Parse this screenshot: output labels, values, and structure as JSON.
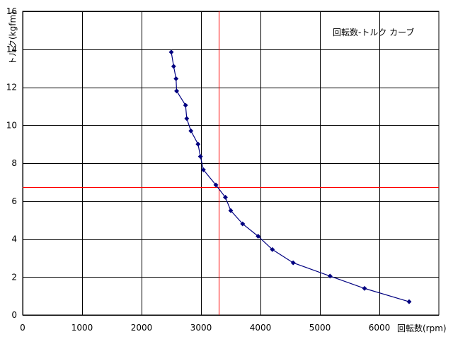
{
  "chart_data": {
    "type": "scatter",
    "title": "回転数-トルク カーブ",
    "xlabel": "回転数(rpm)",
    "ylabel": "トルク(kgfm)",
    "xlim": [
      0,
      7000
    ],
    "ylim": [
      0,
      16
    ],
    "xticks": [
      0,
      1000,
      2000,
      3000,
      4000,
      5000,
      6000
    ],
    "yticks": [
      0,
      2,
      4,
      6,
      8,
      10,
      12,
      14,
      16
    ],
    "xtick_labels": [
      "0",
      "1000",
      "2000",
      "3000",
      "4000",
      "5000",
      "6000"
    ],
    "ytick_labels": [
      "0",
      "2",
      "4",
      "6",
      "8",
      "10",
      "12",
      "14",
      "16"
    ],
    "grid": true,
    "reference_lines": {
      "vertical_x": 3300,
      "horizontal_y": 6.75
    },
    "series": [
      {
        "x": [
          2500,
          2540,
          2580,
          2590,
          2740,
          2760,
          2830,
          2950,
          2990,
          3040,
          3250,
          3410,
          3500,
          3700,
          3960,
          4200,
          4550,
          5170,
          5750,
          6500
        ],
        "y": [
          13.85,
          13.1,
          12.45,
          11.8,
          11.05,
          10.35,
          9.7,
          9.0,
          8.35,
          7.65,
          6.85,
          6.2,
          5.5,
          4.8,
          4.15,
          3.45,
          2.75,
          2.05,
          1.4,
          0.7
        ]
      }
    ],
    "colors": {
      "series": "#000080",
      "grid": "#000000",
      "reference": "#ff0000"
    }
  }
}
